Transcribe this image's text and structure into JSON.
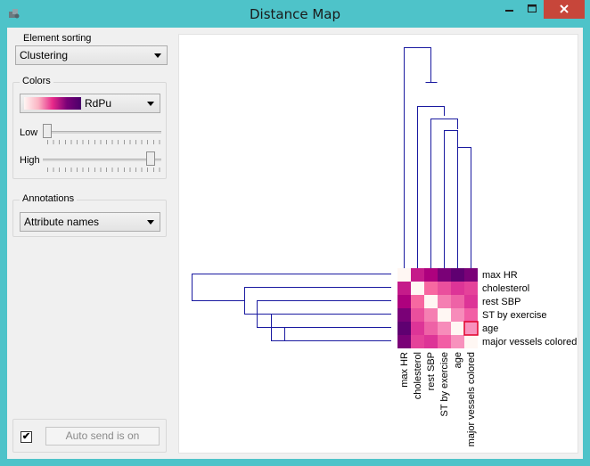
{
  "window": {
    "title": "Distance Map"
  },
  "sidebar": {
    "element_sorting": {
      "title": "Element sorting",
      "value": "Clustering"
    },
    "colors": {
      "title": "Colors",
      "palette": "RdPu",
      "low_label": "Low",
      "high_label": "High",
      "low_level": 0.0,
      "high_level": 0.95
    },
    "annotations": {
      "title": "Annotations",
      "value": "Attribute names"
    },
    "auto_send": {
      "checked": true,
      "label": "Auto send is on"
    }
  },
  "heatmap": {
    "labels": [
      "max HR",
      "cholesterol",
      "rest SBP",
      "ST by exercise",
      "age",
      "major vessels colored"
    ],
    "colors": [
      [
        "#fff7f3",
        "#c51b8a",
        "#ae017e",
        "#7a0177",
        "#5f0071",
        "#7a0177"
      ],
      [
        "#c51b8a",
        "#fff7f3",
        "#f768a1",
        "#ea4f9d",
        "#dd3497",
        "#e5429a"
      ],
      [
        "#ae017e",
        "#f768a1",
        "#fff7f3",
        "#f57fb2",
        "#ee62a6",
        "#dd3497"
      ],
      [
        "#7a0177",
        "#ea4f9d",
        "#f57fb2",
        "#fff7f3",
        "#f78cba",
        "#f25ea5"
      ],
      [
        "#5f0071",
        "#dd3497",
        "#ee62a6",
        "#f78cba",
        "#fff7f3",
        "#f891bd"
      ],
      [
        "#7a0177",
        "#e5429a",
        "#dd3497",
        "#f25ea5",
        "#f891bd",
        "#fff7f3"
      ]
    ],
    "highlight_color": "#e0002a"
  }
}
